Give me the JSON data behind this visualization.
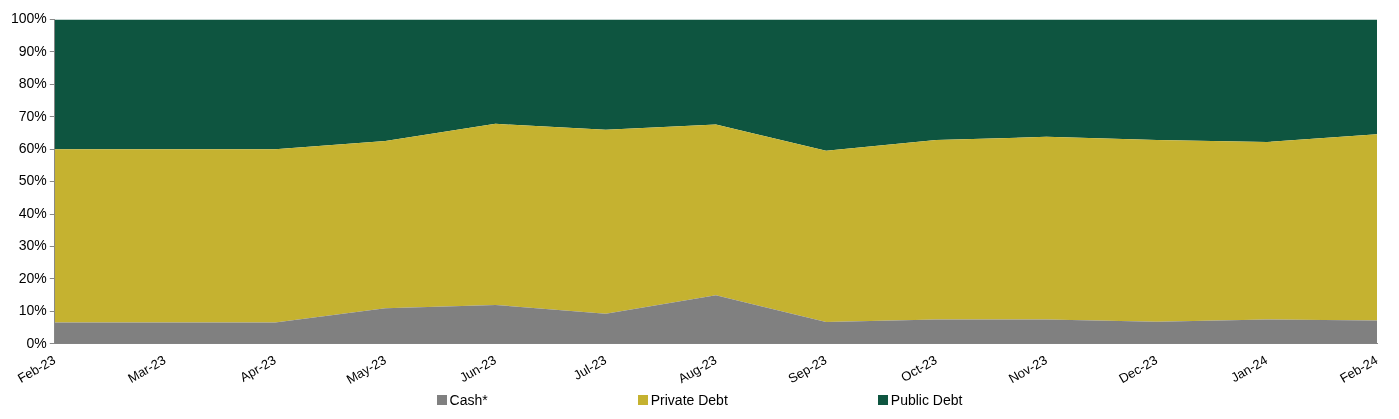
{
  "chart_data": {
    "type": "area",
    "stacked": true,
    "categories": [
      "Feb-23",
      "Mar-23",
      "Apr-23",
      "May-23",
      "Jun-23",
      "Jul-23",
      "Aug-23",
      "Sep-23",
      "Oct-23",
      "Nov-23",
      "Dec-23",
      "Jan-24",
      "Feb-24"
    ],
    "series": [
      {
        "name": "Cash*",
        "color": "#808080",
        "values": [
          6.6,
          6.6,
          6.6,
          11,
          12,
          9.3,
          15,
          6.7,
          7.5,
          7.5,
          6.8,
          7.5,
          7.2
        ]
      },
      {
        "name": "Private Debt",
        "color": "#c5b230",
        "values": [
          53.4,
          53.4,
          53.4,
          51.5,
          55.8,
          56.7,
          52.6,
          52.8,
          55.3,
          56.3,
          56,
          54.7,
          57.4
        ]
      },
      {
        "name": "Public Debt",
        "color": "#0e5540",
        "values": [
          40,
          40,
          40,
          37.5,
          32.2,
          34,
          32.4,
          40.5,
          37.2,
          36.2,
          37.2,
          37.8,
          35.4
        ]
      }
    ],
    "ylim": [
      0,
      100
    ],
    "yticks": [
      {
        "value": 0,
        "label": "0%"
      },
      {
        "value": 10,
        "label": "10%"
      },
      {
        "value": 20,
        "label": "20%"
      },
      {
        "value": 30,
        "label": "30%"
      },
      {
        "value": 40,
        "label": "40%"
      },
      {
        "value": 50,
        "label": "50%"
      },
      {
        "value": 60,
        "label": "60%"
      },
      {
        "value": 70,
        "label": "70%"
      },
      {
        "value": 80,
        "label": "80%"
      },
      {
        "value": 90,
        "label": "90%"
      },
      {
        "value": 100,
        "label": "100%"
      }
    ],
    "grid": false,
    "legend": "bottom"
  }
}
